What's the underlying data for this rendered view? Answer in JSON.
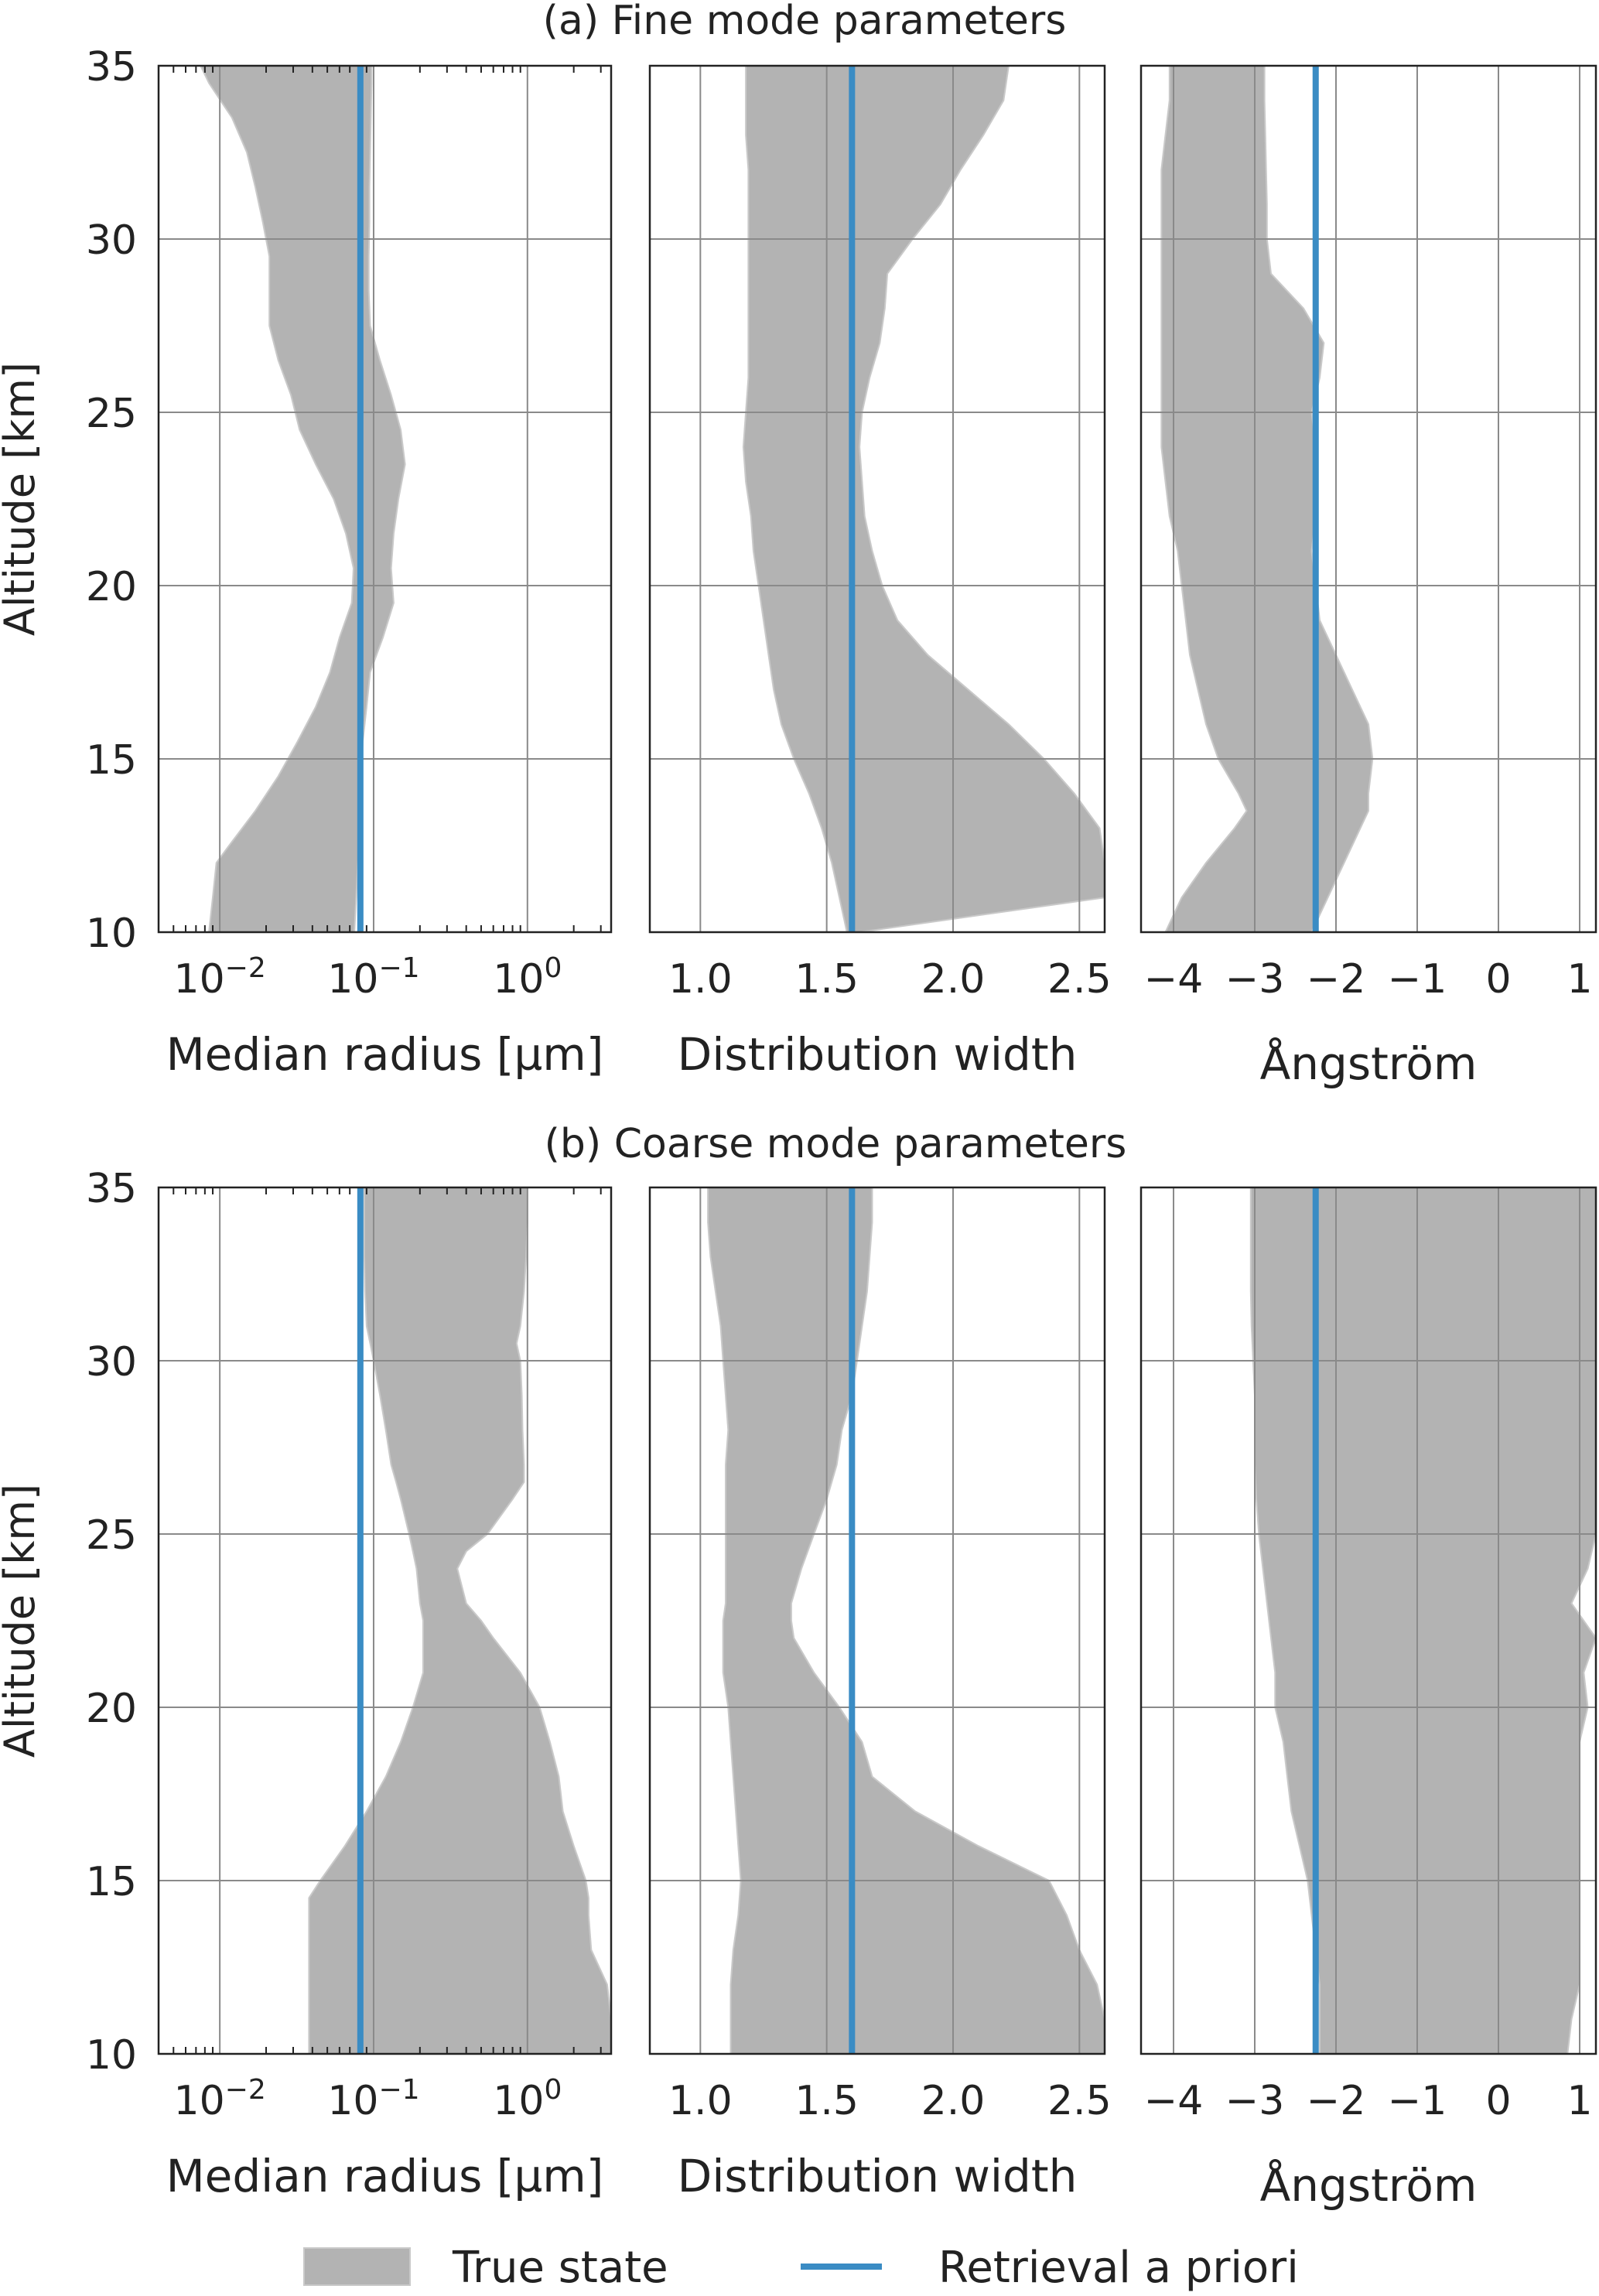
{
  "titles": {
    "fine": "(a)  Fine mode parameters",
    "coarse": "(b) Coarse mode parameters"
  },
  "ylabel": "Altitude [km]",
  "legend": {
    "true_state": "True state",
    "prior": "Retrieval a priori"
  },
  "colors": {
    "band": "#b3b3b3",
    "prior": "#3a8cc4"
  },
  "chart_data": [
    {
      "type": "area",
      "section": "fine",
      "xlabel": "Median radius  [µm]",
      "xscale": "log",
      "xlim": [
        0.004,
        3.5
      ],
      "ylim": [
        10,
        35
      ],
      "xticks": [
        0.01,
        0.1,
        1
      ],
      "xtick_labels": [
        "10",
        "10",
        "10"
      ],
      "xtick_exps": [
        "−2",
        "−1",
        "0"
      ],
      "yticks": [
        10,
        15,
        20,
        25,
        30,
        35
      ],
      "band": {
        "alt": [
          10,
          11,
          12,
          12.5,
          13.5,
          14.5,
          15.5,
          16.5,
          17.5,
          18.5,
          19.5,
          20.5,
          21.5,
          22.5,
          23.5,
          24.5,
          25.5,
          26.5,
          27.5,
          28.5,
          29.5,
          30.5,
          31.5,
          32.5,
          33.5,
          34.5,
          35
        ],
        "lower": [
          0.0085,
          0.009,
          0.0095,
          0.0115,
          0.017,
          0.024,
          0.032,
          0.042,
          0.052,
          0.06,
          0.072,
          0.074,
          0.066,
          0.055,
          0.042,
          0.033,
          0.029,
          0.024,
          0.021,
          0.021,
          0.021,
          0.019,
          0.017,
          0.015,
          0.012,
          0.0085,
          0.0075
        ],
        "upper": [
          0.075,
          0.077,
          0.079,
          0.081,
          0.083,
          0.083,
          0.085,
          0.09,
          0.095,
          0.115,
          0.135,
          0.13,
          0.135,
          0.145,
          0.16,
          0.15,
          0.13,
          0.11,
          0.095,
          0.093,
          0.093,
          0.094,
          0.094,
          0.095,
          0.096,
          0.097,
          0.097
        ]
      },
      "prior": {
        "alt": [
          10,
          35
        ],
        "value": [
          0.082,
          0.082
        ]
      }
    },
    {
      "type": "area",
      "section": "fine",
      "xlabel": "Distribution width",
      "xscale": "linear",
      "xlim": [
        0.8,
        2.6
      ],
      "ylim": [
        10,
        35
      ],
      "xticks": [
        1.0,
        1.5,
        2.0,
        2.5
      ],
      "xtick_labels": [
        "1.0",
        "1.5",
        "2.0",
        "2.5"
      ],
      "yticks": [
        10,
        15,
        20,
        25,
        30,
        35
      ],
      "band": {
        "alt": [
          10,
          11,
          12,
          13,
          14,
          15,
          16,
          17,
          18,
          19,
          20,
          21,
          22,
          23,
          24,
          25,
          26,
          27,
          28,
          29,
          30,
          31,
          32,
          33,
          34,
          35
        ],
        "lower": [
          1.58,
          1.55,
          1.52,
          1.48,
          1.43,
          1.37,
          1.32,
          1.29,
          1.27,
          1.25,
          1.23,
          1.21,
          1.2,
          1.18,
          1.17,
          1.18,
          1.19,
          1.19,
          1.19,
          1.19,
          1.19,
          1.19,
          1.19,
          1.18,
          1.18,
          1.18
        ],
        "upper": [
          1.63,
          2.6,
          2.6,
          2.58,
          2.48,
          2.36,
          2.22,
          2.06,
          1.9,
          1.78,
          1.72,
          1.68,
          1.65,
          1.64,
          1.63,
          1.64,
          1.67,
          1.71,
          1.73,
          1.74,
          1.84,
          1.95,
          2.03,
          2.12,
          2.2,
          2.22
        ]
      },
      "prior": {
        "alt": [
          10,
          35
        ],
        "value": [
          1.6,
          1.6
        ]
      }
    },
    {
      "type": "area",
      "section": "fine",
      "xlabel": "Ångström",
      "xscale": "linear",
      "xlim": [
        -4.4,
        1.2
      ],
      "ylim": [
        10,
        35
      ],
      "xticks": [
        -4,
        -3,
        -2,
        -1,
        0,
        1
      ],
      "xtick_labels": [
        "−4",
        "−3",
        "−2",
        "−1",
        "0",
        "1"
      ],
      "yticks": [
        10,
        15,
        20,
        25,
        30,
        35
      ],
      "band": {
        "alt": [
          10,
          11,
          12,
          13,
          13.5,
          14,
          15,
          16,
          17,
          18,
          19,
          20,
          21,
          22,
          23,
          24,
          25,
          26,
          27,
          28,
          29,
          30,
          31,
          32,
          33,
          34,
          35
        ],
        "lower": [
          -4.1,
          -3.9,
          -3.6,
          -3.25,
          -3.1,
          -3.2,
          -3.45,
          -3.6,
          -3.7,
          -3.8,
          -3.85,
          -3.9,
          -3.95,
          -4.05,
          -4.1,
          -4.15,
          -4.15,
          -4.15,
          -4.15,
          -4.15,
          -4.15,
          -4.15,
          -4.15,
          -4.15,
          -4.1,
          -4.05,
          -4.05
        ],
        "upper": [
          -2.3,
          -2.1,
          -1.9,
          -1.7,
          -1.6,
          -1.6,
          -1.55,
          -1.6,
          -1.8,
          -2.0,
          -2.2,
          -2.25,
          -2.3,
          -2.25,
          -2.25,
          -2.25,
          -2.3,
          -2.2,
          -2.15,
          -2.4,
          -2.8,
          -2.85,
          -2.85,
          -2.86,
          -2.87,
          -2.88,
          -2.88
        ]
      },
      "prior": {
        "alt": [
          10,
          35
        ],
        "value": [
          -2.25,
          -2.25
        ]
      }
    },
    {
      "type": "area",
      "section": "coarse",
      "xlabel": "Median radius  [µm]",
      "xscale": "log",
      "xlim": [
        0.004,
        3.5
      ],
      "ylim": [
        10,
        35
      ],
      "xticks": [
        0.01,
        0.1,
        1
      ],
      "xtick_labels": [
        "10",
        "10",
        "10"
      ],
      "xtick_exps": [
        "−2",
        "−1",
        "0"
      ],
      "yticks": [
        10,
        15,
        20,
        25,
        30,
        35
      ],
      "band": {
        "alt": [
          10,
          11,
          12,
          13,
          14,
          14.5,
          15,
          16,
          17,
          18,
          19,
          20,
          21,
          22,
          22.5,
          23,
          24,
          24.5,
          25,
          26,
          26.5,
          27,
          28,
          29,
          30,
          30.5,
          31,
          32,
          33,
          34,
          35
        ],
        "lower": [
          0.038,
          0.038,
          0.038,
          0.038,
          0.038,
          0.038,
          0.045,
          0.065,
          0.09,
          0.12,
          0.15,
          0.18,
          0.21,
          0.21,
          0.21,
          0.2,
          0.19,
          0.18,
          0.17,
          0.15,
          0.14,
          0.13,
          0.12,
          0.11,
          0.1,
          0.095,
          0.09,
          0.088,
          0.087,
          0.087,
          0.087
        ],
        "upper": [
          3.5,
          3.5,
          3.3,
          2.6,
          2.5,
          2.5,
          2.4,
          2.0,
          1.7,
          1.6,
          1.4,
          1.2,
          0.9,
          0.6,
          0.5,
          0.4,
          0.35,
          0.4,
          0.55,
          0.8,
          0.95,
          0.95,
          0.93,
          0.92,
          0.9,
          0.85,
          0.9,
          0.95,
          0.98,
          1.0,
          1.0
        ]
      },
      "prior": {
        "alt": [
          10,
          35
        ],
        "value": [
          0.082,
          0.082
        ]
      }
    },
    {
      "type": "area",
      "section": "coarse",
      "xlabel": "Distribution width",
      "xscale": "linear",
      "xlim": [
        0.8,
        2.6
      ],
      "ylim": [
        10,
        35
      ],
      "xticks": [
        1.0,
        1.5,
        2.0,
        2.5
      ],
      "xtick_labels": [
        "1.0",
        "1.5",
        "2.0",
        "2.5"
      ],
      "yticks": [
        10,
        15,
        20,
        25,
        30,
        35
      ],
      "band": {
        "alt": [
          10,
          11,
          12,
          13,
          14,
          15,
          16,
          17,
          18,
          19,
          20,
          21,
          22,
          22.5,
          23,
          24,
          25,
          26,
          27,
          28,
          29,
          30,
          31,
          32,
          33,
          34,
          35
        ],
        "lower": [
          1.12,
          1.12,
          1.12,
          1.13,
          1.15,
          1.16,
          1.15,
          1.14,
          1.13,
          1.12,
          1.11,
          1.09,
          1.09,
          1.09,
          1.1,
          1.1,
          1.1,
          1.1,
          1.1,
          1.11,
          1.1,
          1.09,
          1.08,
          1.06,
          1.04,
          1.03,
          1.03
        ],
        "upper": [
          2.6,
          2.6,
          2.57,
          2.5,
          2.45,
          2.38,
          2.1,
          1.85,
          1.68,
          1.64,
          1.55,
          1.45,
          1.37,
          1.36,
          1.36,
          1.4,
          1.45,
          1.5,
          1.54,
          1.56,
          1.6,
          1.62,
          1.64,
          1.66,
          1.67,
          1.68,
          1.68
        ]
      },
      "prior": {
        "alt": [
          10,
          35
        ],
        "value": [
          1.6,
          1.6
        ]
      }
    },
    {
      "type": "area",
      "section": "coarse",
      "xlabel": "Ångström",
      "xscale": "linear",
      "xlim": [
        -4.4,
        1.2
      ],
      "ylim": [
        10,
        35
      ],
      "xticks": [
        -4,
        -3,
        -2,
        -1,
        0,
        1
      ],
      "xtick_labels": [
        "−4",
        "−3",
        "−2",
        "−1",
        "0",
        "1"
      ],
      "yticks": [
        10,
        15,
        20,
        25,
        30,
        35
      ],
      "band": {
        "alt": [
          10,
          11,
          12,
          13,
          14,
          15,
          16,
          17,
          18,
          19,
          20,
          21,
          22,
          23,
          24,
          25,
          26,
          27,
          28,
          29,
          30,
          31,
          32,
          33,
          34,
          35
        ],
        "lower": [
          -2.2,
          -2.2,
          -2.2,
          -2.25,
          -2.3,
          -2.35,
          -2.45,
          -2.55,
          -2.6,
          -2.65,
          -2.75,
          -2.75,
          -2.8,
          -2.85,
          -2.9,
          -2.95,
          -2.98,
          -3.0,
          -3.0,
          -3.0,
          -3.02,
          -3.04,
          -3.05,
          -3.05,
          -3.05,
          -3.05
        ],
        "upper": [
          0.85,
          0.9,
          1.0,
          1.0,
          1.0,
          1.0,
          1.0,
          1.0,
          1.0,
          1.0,
          1.1,
          1.05,
          1.2,
          0.9,
          1.1,
          1.2,
          1.2,
          1.2,
          1.2,
          1.2,
          1.2,
          1.2,
          1.2,
          1.2,
          1.2,
          1.2
        ]
      },
      "prior": {
        "alt": [
          10,
          35
        ],
        "value": [
          -2.25,
          -2.25
        ]
      }
    }
  ]
}
